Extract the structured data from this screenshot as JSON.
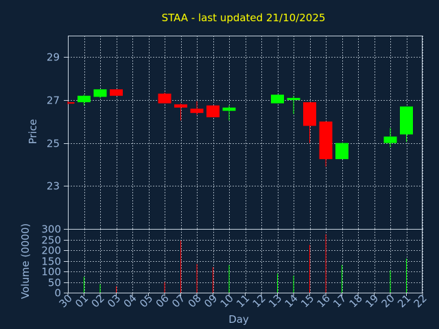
{
  "chart_data": [
    {
      "type": "candlestick",
      "title": "STAA - last updated 21/10/2025",
      "ylabel": "Price",
      "ylim": [
        21.0,
        30.0
      ],
      "yticks": [
        23,
        25,
        27,
        29
      ],
      "grid": true,
      "colors": {
        "up": "#00ff00",
        "down": "#ff0000",
        "title": "#ffff00",
        "axis_text": "#9ab7dc",
        "frame": "#c8d4e0",
        "background": "#0f2034"
      },
      "categories": [
        "30",
        "01",
        "02",
        "03",
        "04",
        "05",
        "06",
        "07",
        "08",
        "09",
        "10",
        "11",
        "12",
        "13",
        "14",
        "15",
        "16",
        "17",
        "18",
        "19",
        "20",
        "21",
        "22"
      ],
      "candles": [
        {
          "x": "30",
          "open": 26.9,
          "close": 26.85,
          "high": 26.95,
          "low": 26.8
        },
        {
          "x": "01",
          "open": 26.9,
          "close": 27.2,
          "high": 27.25,
          "low": 26.75
        },
        {
          "x": "02",
          "open": 27.15,
          "close": 27.5,
          "high": 27.5,
          "low": 27.1
        },
        {
          "x": "03",
          "open": 27.5,
          "close": 27.2,
          "high": 27.5,
          "low": 27.2
        },
        {
          "x": "06",
          "open": 27.3,
          "close": 26.85,
          "high": 27.35,
          "low": 26.85
        },
        {
          "x": "07",
          "open": 26.8,
          "close": 26.65,
          "high": 26.85,
          "low": 26.05
        },
        {
          "x": "08",
          "open": 26.6,
          "close": 26.4,
          "high": 26.95,
          "low": 26.3
        },
        {
          "x": "09",
          "open": 26.75,
          "close": 26.2,
          "high": 26.75,
          "low": 26.2
        },
        {
          "x": "10",
          "open": 26.5,
          "close": 26.65,
          "high": 26.75,
          "low": 26.05
        },
        {
          "x": "13",
          "open": 26.85,
          "close": 27.25,
          "high": 27.25,
          "low": 26.85
        },
        {
          "x": "14",
          "open": 27.0,
          "close": 27.1,
          "high": 27.2,
          "low": 26.35
        },
        {
          "x": "15",
          "open": 26.9,
          "close": 25.8,
          "high": 26.9,
          "low": 25.0
        },
        {
          "x": "16",
          "open": 26.0,
          "close": 24.25,
          "high": 26.0,
          "low": 23.9
        },
        {
          "x": "17",
          "open": 24.25,
          "close": 25.0,
          "high": 25.0,
          "low": 24.25
        },
        {
          "x": "20",
          "open": 25.0,
          "close": 25.3,
          "high": 25.7,
          "low": 24.8
        },
        {
          "x": "21",
          "open": 25.4,
          "close": 26.7,
          "high": 26.7,
          "low": 25.05
        }
      ]
    },
    {
      "type": "bar",
      "ylabel": "Volume (0000)",
      "xlabel": "Day",
      "ylim": [
        0,
        300
      ],
      "yticks": [
        0,
        50,
        100,
        150,
        200,
        250,
        300
      ],
      "categories": [
        "30",
        "01",
        "02",
        "03",
        "04",
        "05",
        "06",
        "07",
        "08",
        "09",
        "10",
        "11",
        "12",
        "13",
        "14",
        "15",
        "16",
        "17",
        "18",
        "19",
        "20",
        "21",
        "22"
      ],
      "bars": [
        {
          "x": "01",
          "value": 75,
          "dir": "up"
        },
        {
          "x": "02",
          "value": 40,
          "dir": "up"
        },
        {
          "x": "03",
          "value": 30,
          "dir": "down"
        },
        {
          "x": "06",
          "value": 50,
          "dir": "down"
        },
        {
          "x": "07",
          "value": 245,
          "dir": "down"
        },
        {
          "x": "08",
          "value": 135,
          "dir": "down"
        },
        {
          "x": "09",
          "value": 120,
          "dir": "down"
        },
        {
          "x": "10",
          "value": 130,
          "dir": "up"
        },
        {
          "x": "13",
          "value": 90,
          "dir": "up"
        },
        {
          "x": "14",
          "value": 80,
          "dir": "up"
        },
        {
          "x": "15",
          "value": 225,
          "dir": "down"
        },
        {
          "x": "16",
          "value": 275,
          "dir": "down"
        },
        {
          "x": "17",
          "value": 130,
          "dir": "up"
        },
        {
          "x": "20",
          "value": 105,
          "dir": "up"
        },
        {
          "x": "21",
          "value": 160,
          "dir": "up"
        }
      ]
    }
  ]
}
